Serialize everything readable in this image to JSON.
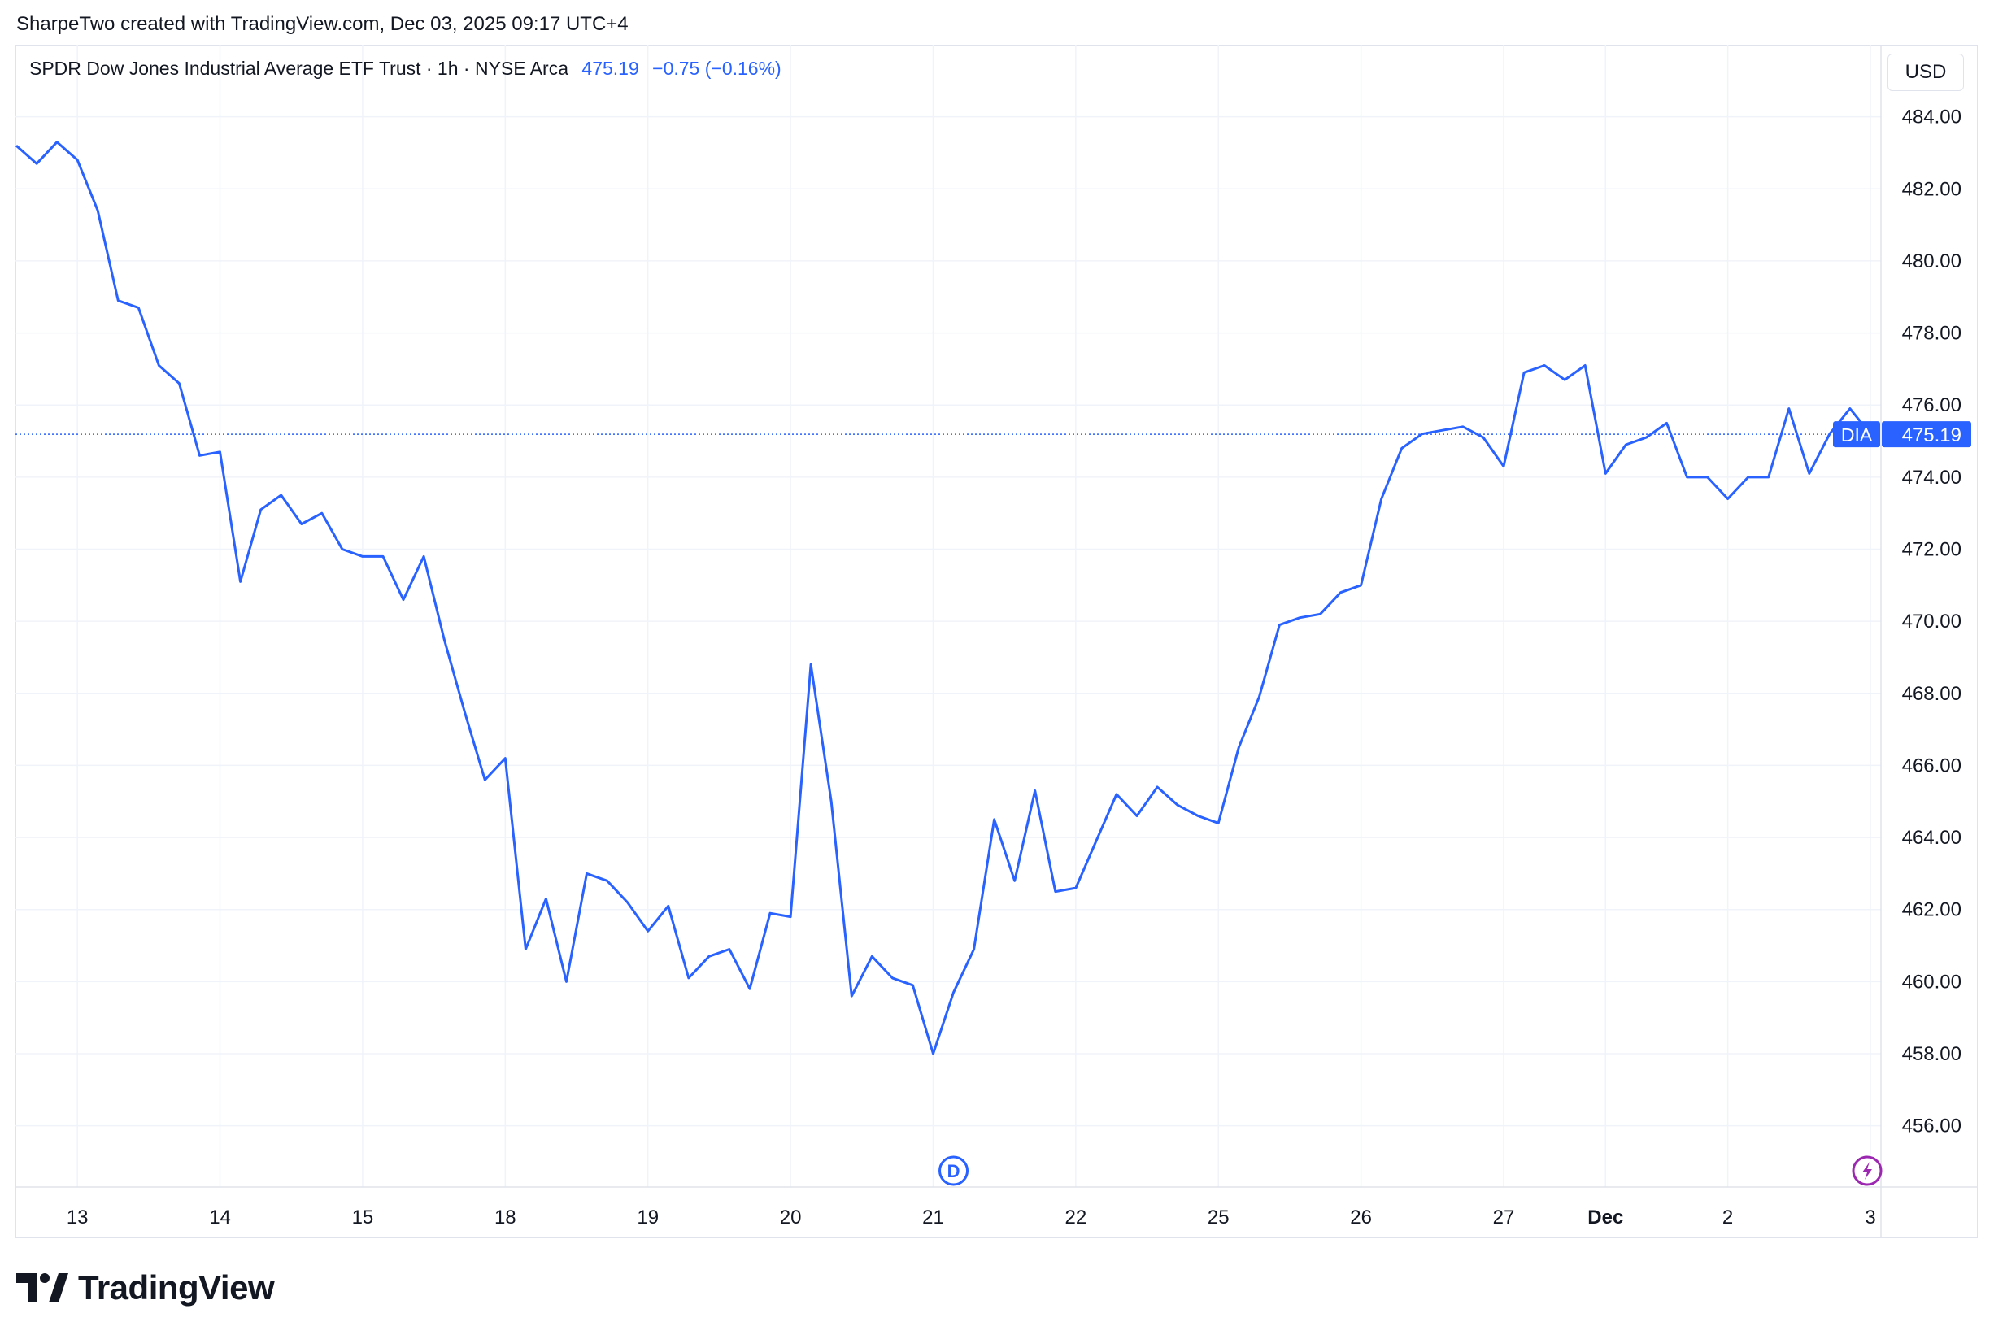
{
  "attribution": "SharpeTwo created with TradingView.com, Dec 03, 2025 09:17 UTC+4",
  "legend": {
    "symbol_line": "SPDR Dow Jones Industrial Average ETF Trust · 1h · NYSE Arca",
    "last_price": "475.19",
    "change": "−0.75 (−0.16%)"
  },
  "currency_button": "USD",
  "brand": {
    "name": "TradingView",
    "logo_icon": "tradingview-logo-icon"
  },
  "markers": {
    "dividend_label": "D",
    "dividend_icon": "dividend-marker-icon",
    "event_icon": "lightning-event-icon"
  },
  "colors": {
    "line": "#2962ff",
    "grid": "#f0f3fa",
    "text": "#131722",
    "event": "#9c27b0"
  },
  "chart_data": {
    "type": "line",
    "series": [
      {
        "name": "DIA",
        "last_value_label": "475.19",
        "values": [
          483.2,
          482.7,
          483.3,
          482.8,
          481.4,
          478.9,
          478.7,
          477.1,
          476.6,
          474.6,
          474.7,
          471.1,
          473.1,
          473.5,
          472.7,
          473.0,
          472.0,
          471.8,
          471.8,
          470.6,
          471.8,
          469.5,
          467.5,
          465.6,
          466.2,
          460.9,
          462.3,
          460.0,
          463.0,
          462.8,
          462.2,
          461.4,
          462.1,
          460.1,
          460.7,
          460.9,
          459.8,
          461.9,
          461.8,
          468.8,
          465.0,
          459.6,
          460.7,
          460.1,
          459.9,
          458.0,
          459.7,
          460.9,
          464.5,
          462.8,
          465.3,
          462.5,
          462.6,
          463.9,
          465.2,
          464.6,
          465.4,
          464.9,
          464.6,
          464.4,
          466.5,
          467.9,
          469.9,
          470.1,
          470.2,
          470.8,
          471.0,
          473.4,
          474.8,
          475.2,
          475.3,
          475.4,
          475.1,
          474.3,
          476.9,
          477.1,
          476.7,
          477.1,
          474.1,
          474.9,
          475.1,
          475.5,
          474.0,
          474.0,
          473.4,
          474.0,
          474.0,
          475.9,
          474.1,
          475.2,
          475.9,
          475.2
        ]
      }
    ],
    "x_ticks": [
      {
        "label": "13",
        "index": 3,
        "bold": false
      },
      {
        "label": "14",
        "index": 10,
        "bold": false
      },
      {
        "label": "15",
        "index": 17,
        "bold": false
      },
      {
        "label": "18",
        "index": 24,
        "bold": false
      },
      {
        "label": "19",
        "index": 31,
        "bold": false
      },
      {
        "label": "20",
        "index": 38,
        "bold": false
      },
      {
        "label": "21",
        "index": 45,
        "bold": false
      },
      {
        "label": "22",
        "index": 52,
        "bold": false
      },
      {
        "label": "25",
        "index": 59,
        "bold": false
      },
      {
        "label": "26",
        "index": 66,
        "bold": false
      },
      {
        "label": "27",
        "index": 73,
        "bold": false
      },
      {
        "label": "Dec",
        "index": 78,
        "bold": true
      },
      {
        "label": "2",
        "index": 84,
        "bold": false
      },
      {
        "label": "3",
        "index": 91,
        "bold": false
      }
    ],
    "y_ticks": [
      "484.00",
      "482.00",
      "480.00",
      "478.00",
      "476.00",
      "474.00",
      "472.00",
      "470.00",
      "468.00",
      "466.00",
      "464.00",
      "462.00",
      "460.00",
      "458.00",
      "456.00"
    ],
    "ylim": [
      454.3,
      486.0
    ],
    "last_value_line": 475.19,
    "dividend_marker_index": 46,
    "event_marker_index": 91,
    "grid": true
  }
}
